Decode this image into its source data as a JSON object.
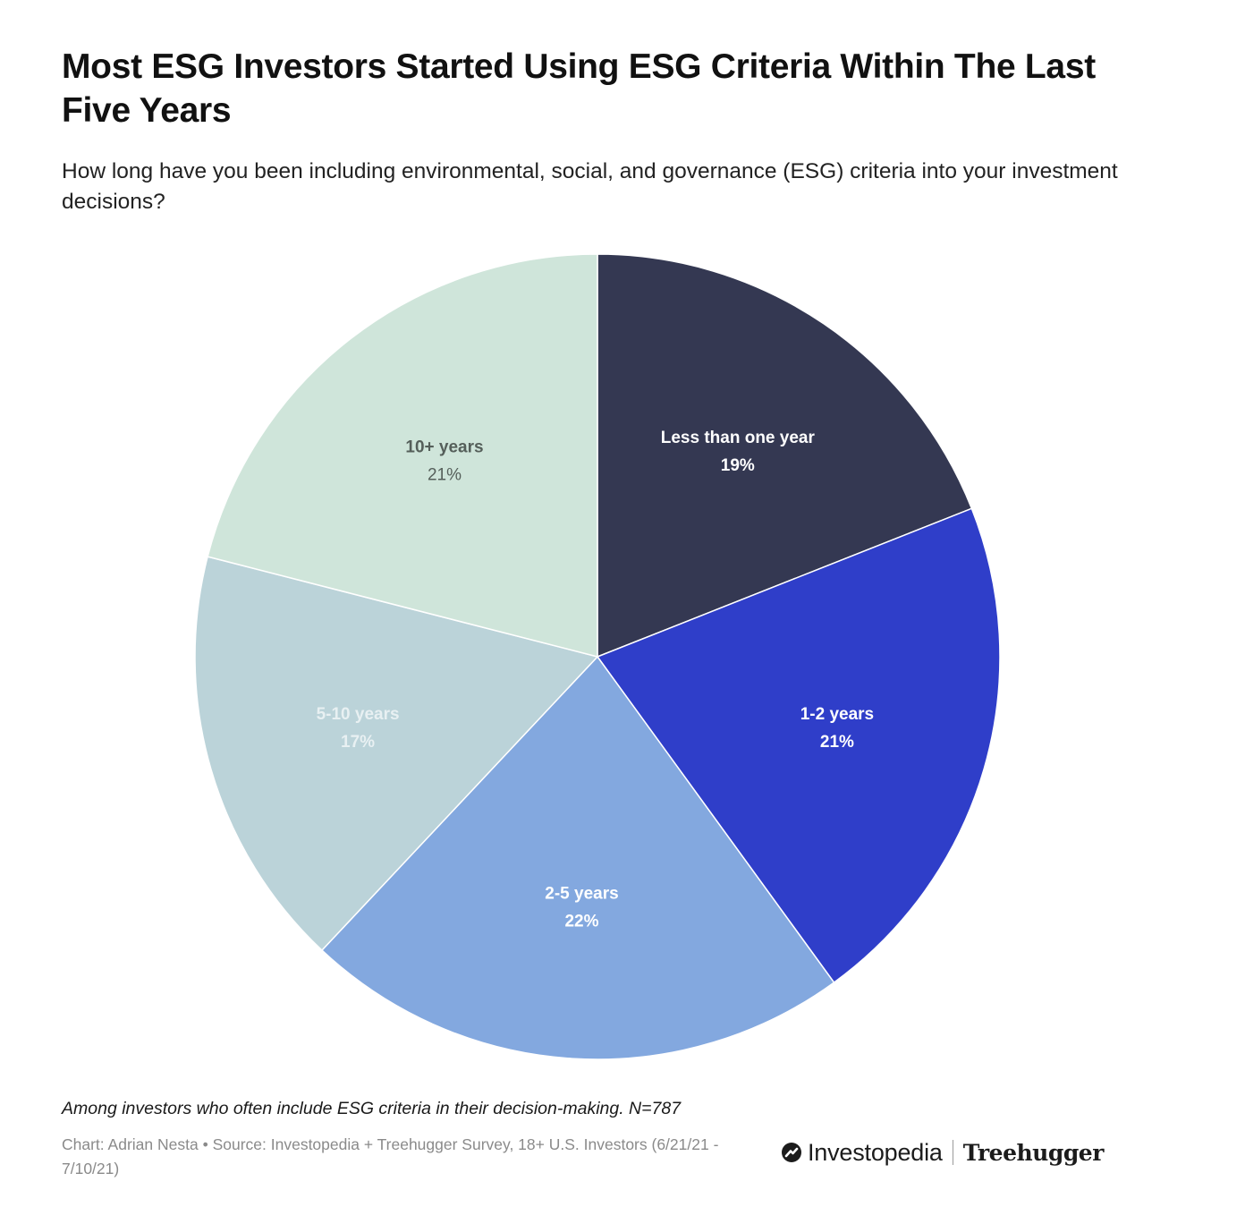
{
  "title": "Most ESG Investors Started Using ESG Criteria Within The Last Five Years",
  "subtitle": "How long have you been including environmental, social, and governance (ESG) criteria into your investment decisions?",
  "note": "Among investors who often include ESG criteria in their decision-making. N=787",
  "credit": "Chart: Adrian Nesta • Source: Investopedia + Treehugger Survey, 18+ U.S. Investors (6/21/21 - 7/10/21)",
  "brands": {
    "investopedia": "Investopedia",
    "treehugger": "Treehugger"
  },
  "chart_data": {
    "type": "pie",
    "start": "12 o'clock",
    "direction": "clockwise",
    "slices": [
      {
        "label": "Less than one year",
        "value": 19,
        "value_label": "19%",
        "color": "#343852",
        "text_color": "#ffffff"
      },
      {
        "label": "1-2 years",
        "value": 21,
        "value_label": "21%",
        "color": "#2f3ec9",
        "text_color": "#ffffff"
      },
      {
        "label": "2-5 years",
        "value": 22,
        "value_label": "22%",
        "color": "#83a8df",
        "text_color": "#ffffff"
      },
      {
        "label": "5-10 years",
        "value": 17,
        "value_label": "17%",
        "color": "#bbd3d9",
        "text_color": "#e8f0f2"
      },
      {
        "label": "10+ years",
        "value": 21,
        "value_label": "21%",
        "color": "#cfe5da",
        "text_color": "#555f5a"
      }
    ]
  }
}
